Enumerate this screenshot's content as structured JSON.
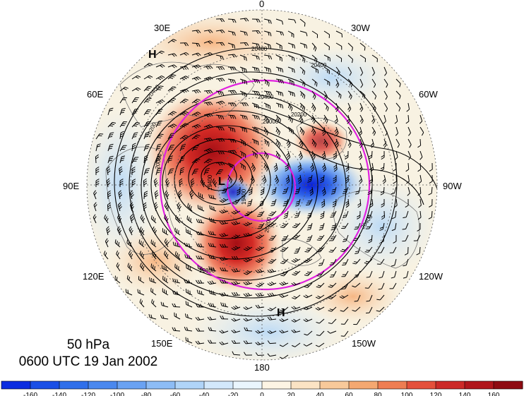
{
  "map": {
    "level": "50 hPa",
    "datetime": "0600 UTC 19 Jan 2002",
    "longitude_labels": [
      {
        "text": "0",
        "lon_deg": 0
      },
      {
        "text": "30W",
        "lon_deg": 30
      },
      {
        "text": "60W",
        "lon_deg": 60
      },
      {
        "text": "90W",
        "lon_deg": 90
      },
      {
        "text": "120W",
        "lon_deg": 120
      },
      {
        "text": "150W",
        "lon_deg": 150
      },
      {
        "text": "180",
        "lon_deg": 180
      },
      {
        "text": "150E",
        "lon_deg": 210
      },
      {
        "text": "120E",
        "lon_deg": 240
      },
      {
        "text": "90E",
        "lon_deg": 270
      },
      {
        "text": "60E",
        "lon_deg": 300
      },
      {
        "text": "30E",
        "lon_deg": 330
      }
    ],
    "contour_labels": [
      "20400",
      "20400",
      "20400",
      "20400",
      "20200",
      "20200",
      "20000",
      "20000",
      "19400",
      "19400",
      "20200",
      "19800",
      "20400"
    ],
    "pressure_systems": [
      {
        "text": "H",
        "kind": "high"
      },
      {
        "text": "H",
        "kind": "high"
      },
      {
        "text": "L",
        "kind": "low"
      }
    ],
    "colors": {
      "positive_max": "#a50f15",
      "negative_max": "#0a1fd6",
      "contours": "#000000",
      "circles": "#e020e0",
      "graticule": "#555555"
    }
  },
  "colorbar": {
    "ticks": [
      "-160",
      "-140",
      "-120",
      "-100",
      "-80",
      "-60",
      "-40",
      "-20",
      "0",
      "20",
      "40",
      "60",
      "80",
      "100",
      "120",
      "140",
      "160"
    ],
    "colors": [
      "#0b2ce0",
      "#1a4fe6",
      "#2f6fea",
      "#4a88ee",
      "#6aa2f2",
      "#8dbcf5",
      "#b0d4f8",
      "#d3e8fb",
      "#eaf5fd",
      "#fdf4e4",
      "#fbe3c4",
      "#f8c99a",
      "#f4a871",
      "#ee7d52",
      "#e4503b",
      "#cc2a28",
      "#b0161c",
      "#8e0b12"
    ]
  }
}
